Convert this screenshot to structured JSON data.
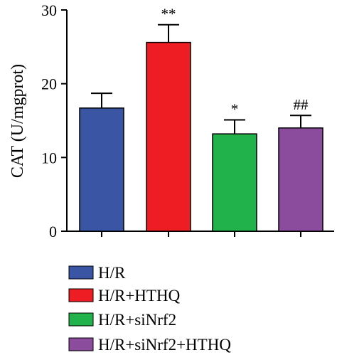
{
  "chart_data": {
    "type": "bar",
    "ylabel": "CAT (U/mgprot)",
    "ylim": [
      0,
      30
    ],
    "yticks": [
      "0",
      "10",
      "20",
      "30"
    ],
    "categories": [
      "H/R",
      "H/R+HTHQ",
      "H/R+siNrf2",
      "H/R+siNrf2+HTHQ"
    ],
    "values": [
      16.7,
      25.6,
      13.2,
      14.0
    ],
    "errors": [
      2.0,
      2.4,
      1.9,
      1.7
    ],
    "annotations": [
      "",
      "**",
      "*",
      "##"
    ],
    "colors": [
      "#3a55a4",
      "#ee1d24",
      "#22b24c",
      "#8c4c9e"
    ],
    "legend": {
      "position": "bottom-left",
      "entries": [
        "H/R",
        "H/R+HTHQ",
        "H/R+siNrf2",
        "H/R+siNrf2+HTHQ"
      ]
    },
    "grid": false
  }
}
